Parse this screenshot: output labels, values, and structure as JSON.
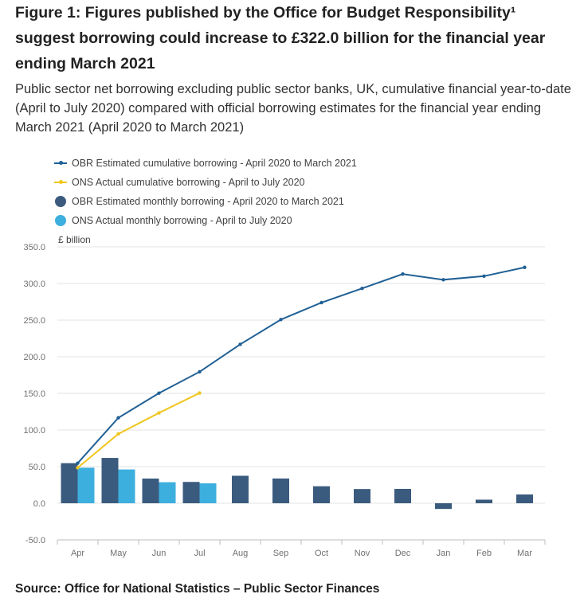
{
  "title": "Figure 1: Figures published by the Office for Budget Responsibility¹ suggest borrowing could increase to £322.0 billion for the financial year ending March 2021",
  "subtitle": "Public sector net borrowing excluding public sector banks, UK, cumulative financial year-to-date (April to July 2020) compared with official borrowing estimates for the financial year ending March 2021 (April 2020 to March 2021)",
  "source": "Source: Office for National Statistics – Public Sector Finances",
  "colors": {
    "obr_cumulative": "#206095",
    "ons_cumulative": "#F0C61F",
    "obr_monthly": "#3B5B7E",
    "ons_monthly": "#3DAFDF",
    "grid": "#E3E3E3",
    "axis_text": "#707070"
  },
  "chart_data": {
    "type": "bar+line",
    "ylabel": "£ billion",
    "ylim": [
      -50,
      350
    ],
    "yticks": [
      "350.0",
      "300.0",
      "250.0",
      "200.0",
      "150.0",
      "100.0",
      "50.0",
      "0.0",
      "-50.0"
    ],
    "ytick_values": [
      350,
      300,
      250,
      200,
      150,
      100,
      50,
      0,
      -50
    ],
    "categories": [
      "Apr",
      "May",
      "Jun",
      "Jul",
      "Aug",
      "Sep",
      "Oct",
      "Nov",
      "Dec",
      "Jan",
      "Feb",
      "Mar"
    ],
    "grid": true,
    "legend_position": "top-left",
    "series": [
      {
        "name": "OBR Estimated cumulative borrowing - April 2020 to March 2021",
        "kind": "line",
        "color_key": "obr_cumulative",
        "values": [
          54.7,
          116.6,
          150.3,
          179.4,
          216.9,
          250.7,
          273.9,
          293.3,
          312.9,
          305.1,
          310.0,
          322.0
        ]
      },
      {
        "name": "ONS Actual cumulative borrowing - April to July 2020",
        "kind": "line",
        "color_key": "ons_cumulative",
        "values": [
          48.5,
          94.6,
          123.3,
          150.5,
          null,
          null,
          null,
          null,
          null,
          null,
          null,
          null
        ]
      },
      {
        "name": "OBR Estimated monthly borrowing - April 2020 to March 2021",
        "kind": "bar",
        "color_key": "obr_monthly",
        "values": [
          54.7,
          61.9,
          33.7,
          29.1,
          37.5,
          33.8,
          23.2,
          19.4,
          19.6,
          -7.8,
          4.9,
          12.0
        ]
      },
      {
        "name": "ONS Actual monthly borrowing - April to July 2020",
        "kind": "bar",
        "color_key": "ons_monthly",
        "values": [
          48.5,
          46.1,
          28.7,
          27.2,
          null,
          null,
          null,
          null,
          null,
          null,
          null,
          null
        ]
      }
    ]
  }
}
